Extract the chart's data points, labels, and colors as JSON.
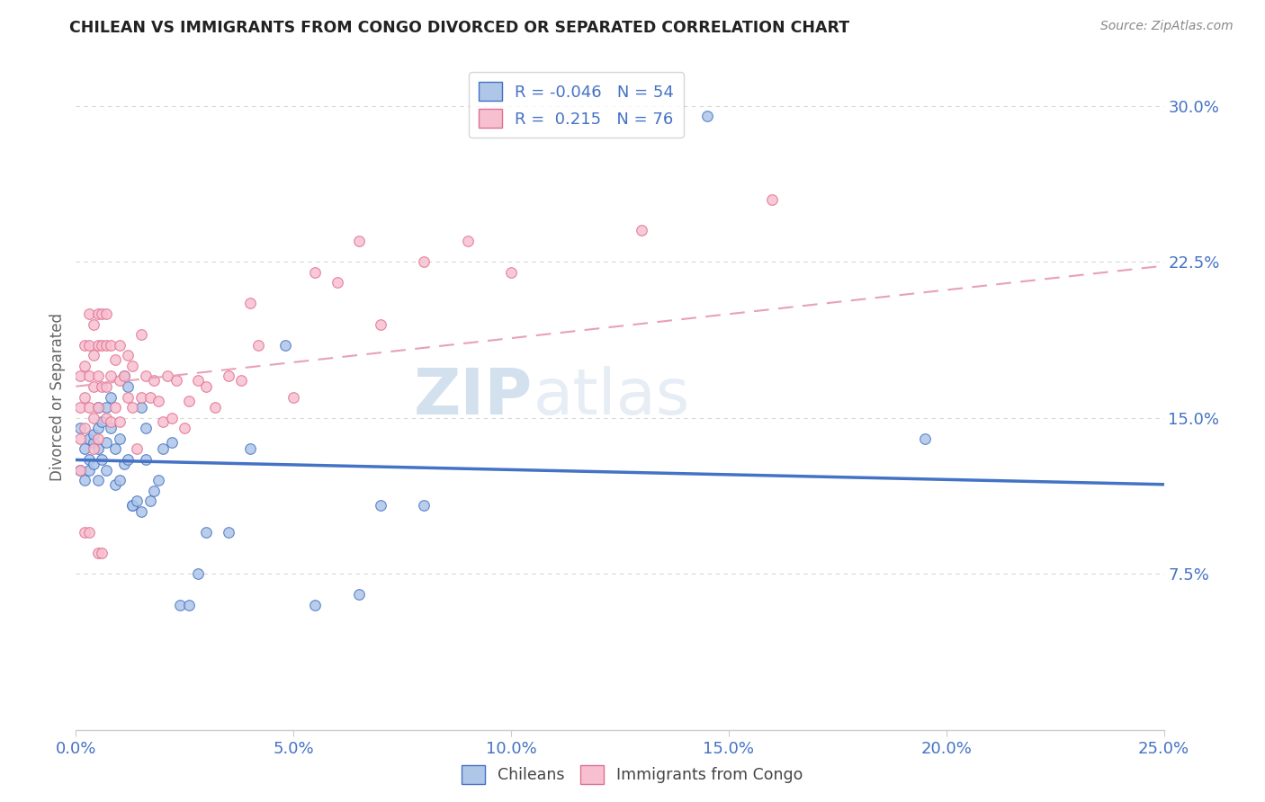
{
  "title": "CHILEAN VS IMMIGRANTS FROM CONGO DIVORCED OR SEPARATED CORRELATION CHART",
  "source": "Source: ZipAtlas.com",
  "ylabel": "Divorced or Separated",
  "xlim": [
    0.0,
    0.25
  ],
  "ylim": [
    0.0,
    0.32
  ],
  "x_tick_vals": [
    0.0,
    0.05,
    0.1,
    0.15,
    0.2,
    0.25
  ],
  "x_tick_labels": [
    "0.0%",
    "5.0%",
    "10.0%",
    "15.0%",
    "20.0%",
    "25.0%"
  ],
  "y_tick_vals": [
    0.075,
    0.15,
    0.225,
    0.3
  ],
  "y_tick_labels": [
    "7.5%",
    "15.0%",
    "22.5%",
    "30.0%"
  ],
  "chilean_fill_color": "#aec6e8",
  "chilean_edge_color": "#4472c4",
  "congo_fill_color": "#f7c0d0",
  "congo_edge_color": "#e07090",
  "chilean_line_color": "#4472c4",
  "congo_line_color": "#e8a0b8",
  "tick_label_color": "#4472c4",
  "watermark": "ZIPatlas",
  "watermark_color": "#c8daf0",
  "grid_color": "#d8d8d8",
  "R_chilean": -0.046,
  "N_chilean": 54,
  "R_congo": 0.215,
  "N_congo": 76,
  "chilean_scatter_x": [
    0.001,
    0.001,
    0.002,
    0.002,
    0.003,
    0.003,
    0.003,
    0.004,
    0.004,
    0.004,
    0.005,
    0.005,
    0.005,
    0.005,
    0.006,
    0.006,
    0.007,
    0.007,
    0.007,
    0.008,
    0.008,
    0.009,
    0.009,
    0.01,
    0.01,
    0.011,
    0.011,
    0.012,
    0.012,
    0.013,
    0.013,
    0.014,
    0.015,
    0.015,
    0.016,
    0.016,
    0.017,
    0.018,
    0.019,
    0.02,
    0.022,
    0.024,
    0.026,
    0.028,
    0.03,
    0.035,
    0.04,
    0.048,
    0.055,
    0.065,
    0.07,
    0.08,
    0.145,
    0.195
  ],
  "chilean_scatter_y": [
    0.145,
    0.125,
    0.135,
    0.12,
    0.14,
    0.13,
    0.125,
    0.138,
    0.128,
    0.142,
    0.135,
    0.12,
    0.145,
    0.155,
    0.13,
    0.148,
    0.125,
    0.155,
    0.138,
    0.16,
    0.145,
    0.135,
    0.118,
    0.14,
    0.12,
    0.17,
    0.128,
    0.165,
    0.13,
    0.108,
    0.108,
    0.11,
    0.155,
    0.105,
    0.145,
    0.13,
    0.11,
    0.115,
    0.12,
    0.135,
    0.138,
    0.06,
    0.06,
    0.075,
    0.095,
    0.095,
    0.135,
    0.185,
    0.06,
    0.065,
    0.108,
    0.108,
    0.295,
    0.14
  ],
  "congo_scatter_x": [
    0.001,
    0.001,
    0.001,
    0.001,
    0.002,
    0.002,
    0.002,
    0.002,
    0.002,
    0.003,
    0.003,
    0.003,
    0.003,
    0.003,
    0.004,
    0.004,
    0.004,
    0.004,
    0.004,
    0.005,
    0.005,
    0.005,
    0.005,
    0.005,
    0.005,
    0.006,
    0.006,
    0.006,
    0.006,
    0.007,
    0.007,
    0.007,
    0.007,
    0.008,
    0.008,
    0.008,
    0.009,
    0.009,
    0.01,
    0.01,
    0.01,
    0.011,
    0.012,
    0.012,
    0.013,
    0.013,
    0.014,
    0.015,
    0.015,
    0.016,
    0.017,
    0.018,
    0.019,
    0.02,
    0.021,
    0.022,
    0.023,
    0.025,
    0.026,
    0.028,
    0.03,
    0.032,
    0.035,
    0.038,
    0.04,
    0.042,
    0.05,
    0.055,
    0.06,
    0.065,
    0.07,
    0.08,
    0.09,
    0.1,
    0.13,
    0.16
  ],
  "congo_scatter_y": [
    0.17,
    0.155,
    0.14,
    0.125,
    0.185,
    0.175,
    0.16,
    0.145,
    0.095,
    0.2,
    0.185,
    0.17,
    0.155,
    0.095,
    0.195,
    0.18,
    0.165,
    0.15,
    0.135,
    0.2,
    0.185,
    0.17,
    0.155,
    0.14,
    0.085,
    0.2,
    0.185,
    0.165,
    0.085,
    0.2,
    0.185,
    0.165,
    0.15,
    0.185,
    0.17,
    0.148,
    0.178,
    0.155,
    0.185,
    0.168,
    0.148,
    0.17,
    0.18,
    0.16,
    0.175,
    0.155,
    0.135,
    0.19,
    0.16,
    0.17,
    0.16,
    0.168,
    0.158,
    0.148,
    0.17,
    0.15,
    0.168,
    0.145,
    0.158,
    0.168,
    0.165,
    0.155,
    0.17,
    0.168,
    0.205,
    0.185,
    0.16,
    0.22,
    0.215,
    0.235,
    0.195,
    0.225,
    0.235,
    0.22,
    0.24,
    0.255
  ],
  "legend_border_color": "#cccccc",
  "bottom_axis_color": "#cccccc"
}
